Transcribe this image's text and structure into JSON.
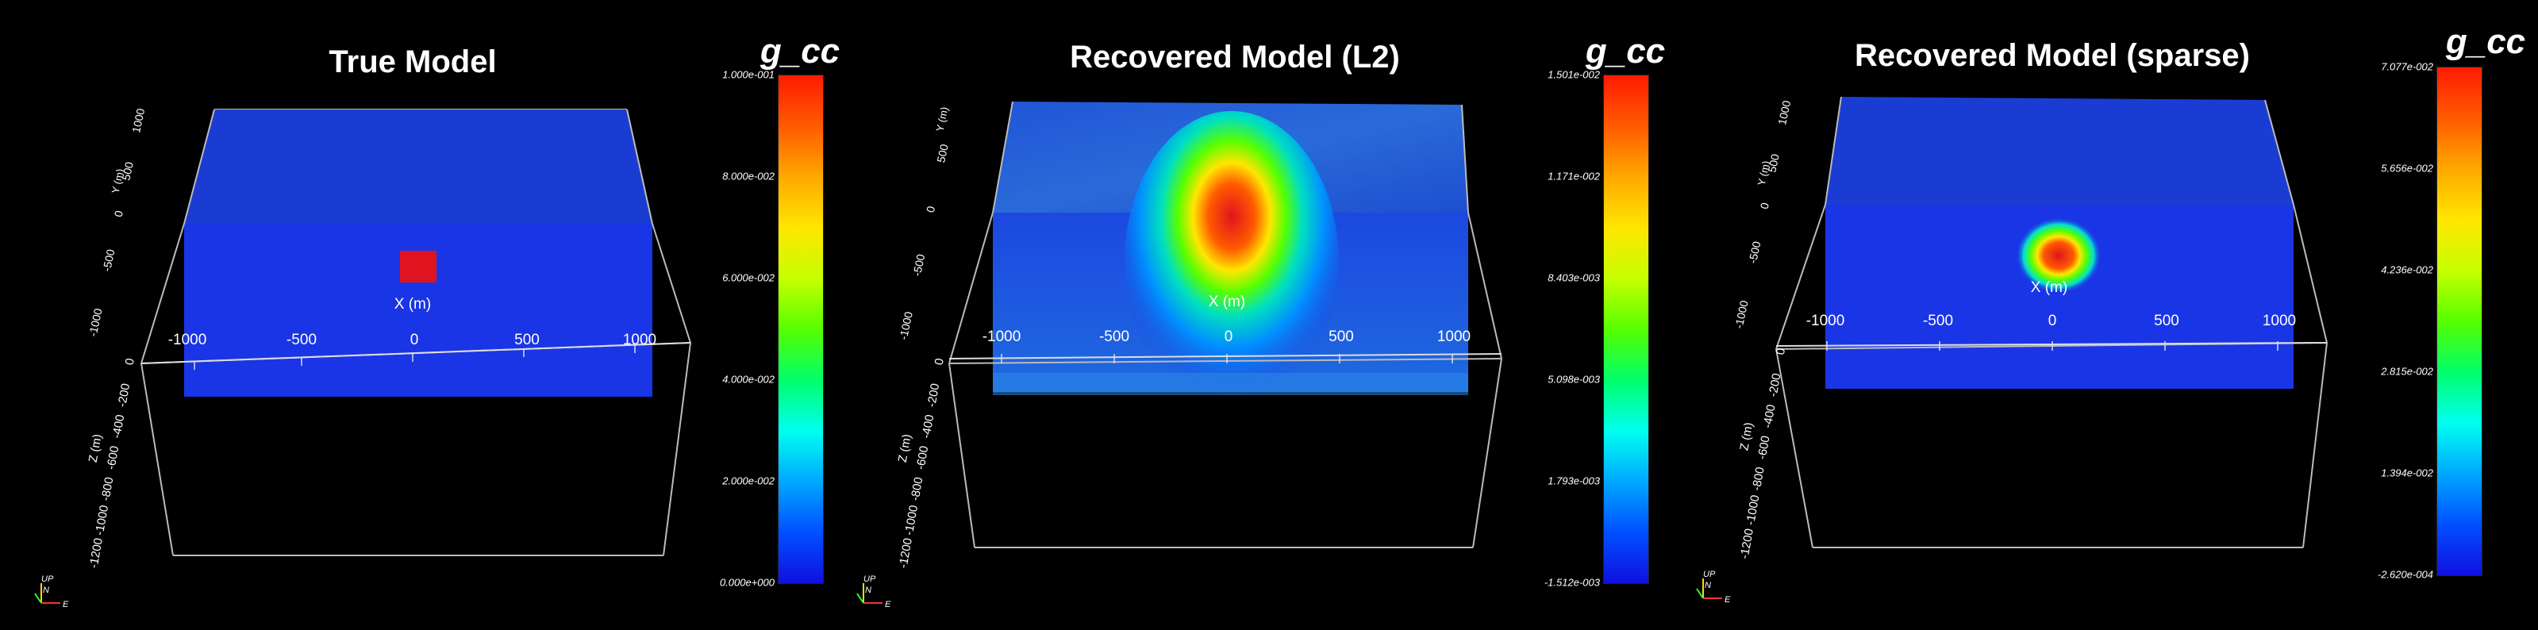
{
  "panels": [
    {
      "title": "True Model",
      "colorbar": {
        "title": "g_cc",
        "labels": [
          "1.000e-001",
          "8.000e-002",
          "6.000e-002",
          "4.000e-002",
          "2.000e-002",
          "0.000e+000"
        ]
      },
      "x_axis": {
        "label": "X (m)",
        "ticks": [
          "-1000",
          "-500",
          "0",
          "500",
          "1000"
        ]
      },
      "y_axis": {
        "label": "Y (m)",
        "ticks": [
          "1000",
          "500",
          "0",
          "-500",
          "-1000"
        ]
      },
      "z_axis": {
        "label": "Z (m)",
        "ticks": [
          "0",
          "-200",
          "-400",
          "-600",
          "-800",
          "-1000",
          "-1200"
        ]
      },
      "orientation": {
        "up": "UP",
        "north": "N",
        "east": "E"
      },
      "anomaly": "block"
    },
    {
      "title": "Recovered Model (L2)",
      "colorbar": {
        "title": "g_cc",
        "labels": [
          "1.501e-002",
          "1.171e-002",
          "8.403e-003",
          "5.098e-003",
          "1.793e-003",
          "-1.512e-003"
        ]
      },
      "x_axis": {
        "label": "X (m)",
        "ticks": [
          "-1000",
          "-500",
          "0",
          "500",
          "1000"
        ]
      },
      "y_axis": {
        "label": "Y (m)",
        "ticks": [
          "500",
          "0",
          "-500",
          "-1000"
        ]
      },
      "z_axis": {
        "label": "Z (m)",
        "ticks": [
          "0",
          "-200",
          "-400",
          "-600",
          "-800",
          "-1000",
          "-1200"
        ]
      },
      "orientation": {
        "up": "UP",
        "north": "N",
        "east": "E"
      },
      "anomaly": "smooth"
    },
    {
      "title": "Recovered Model (sparse)",
      "colorbar": {
        "title": "g_cc",
        "labels": [
          "7.077e-002",
          "5.656e-002",
          "4.236e-002",
          "2.815e-002",
          "1.394e-002",
          "-2.620e-004"
        ]
      },
      "x_axis": {
        "label": "X (m)",
        "ticks": [
          "-1000",
          "-500",
          "0",
          "500",
          "1000"
        ]
      },
      "y_axis": {
        "label": "Y (m)",
        "ticks": [
          "1000",
          "500",
          "0",
          "-500",
          "-1000"
        ]
      },
      "z_axis": {
        "label": "Z (m)",
        "ticks": [
          "0",
          "-200",
          "-400",
          "-600",
          "-800",
          "-1000",
          "-1200"
        ]
      },
      "orientation": {
        "up": "UP",
        "north": "N",
        "east": "E"
      },
      "anomaly": "compact"
    }
  ]
}
